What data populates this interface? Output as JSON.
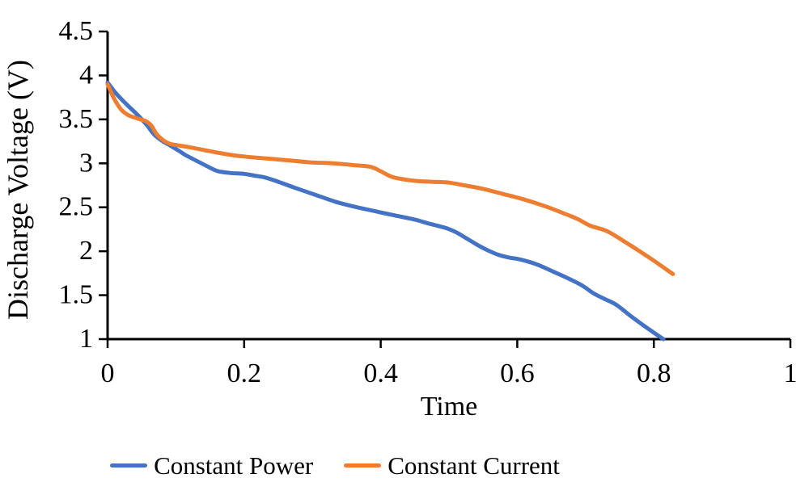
{
  "chart_data": {
    "type": "line",
    "title": "",
    "xlabel": "Time",
    "ylabel": "Discharge Voltage (V)",
    "xlim": [
      0,
      1
    ],
    "ylim": [
      1,
      4.5
    ],
    "grid": false,
    "legend_position": "bottom",
    "axis_color": "#000000",
    "text_color": "#000000",
    "x_ticks": {
      "values": [
        0,
        0.2,
        0.4,
        0.6,
        0.8,
        1
      ],
      "labels": [
        "0",
        "0.2",
        "0.4",
        "0.6",
        "0.8",
        "1"
      ]
    },
    "y_ticks": {
      "values": [
        1,
        1.5,
        2,
        2.5,
        3,
        3.5,
        4,
        4.5
      ],
      "labels": [
        "1",
        "1.5",
        "2",
        "2.5",
        "3",
        "3.5",
        "4",
        "4.5"
      ]
    },
    "series": [
      {
        "name": "Constant Power",
        "color": "#4472C4",
        "points": [
          [
            0.0,
            3.92
          ],
          [
            0.013,
            3.79
          ],
          [
            0.028,
            3.67
          ],
          [
            0.044,
            3.55
          ],
          [
            0.057,
            3.44
          ],
          [
            0.068,
            3.33
          ],
          [
            0.079,
            3.26
          ],
          [
            0.09,
            3.21
          ],
          [
            0.105,
            3.14
          ],
          [
            0.115,
            3.09
          ],
          [
            0.135,
            3.01
          ],
          [
            0.15,
            2.95
          ],
          [
            0.162,
            2.91
          ],
          [
            0.18,
            2.89
          ],
          [
            0.2,
            2.88
          ],
          [
            0.215,
            2.86
          ],
          [
            0.23,
            2.84
          ],
          [
            0.25,
            2.79
          ],
          [
            0.275,
            2.72
          ],
          [
            0.305,
            2.64
          ],
          [
            0.335,
            2.56
          ],
          [
            0.365,
            2.5
          ],
          [
            0.395,
            2.45
          ],
          [
            0.425,
            2.4
          ],
          [
            0.45,
            2.36
          ],
          [
            0.468,
            2.32
          ],
          [
            0.483,
            2.29
          ],
          [
            0.497,
            2.26
          ],
          [
            0.512,
            2.21
          ],
          [
            0.527,
            2.14
          ],
          [
            0.542,
            2.07
          ],
          [
            0.557,
            2.01
          ],
          [
            0.572,
            1.96
          ],
          [
            0.587,
            1.93
          ],
          [
            0.602,
            1.91
          ],
          [
            0.617,
            1.88
          ],
          [
            0.632,
            1.84
          ],
          [
            0.652,
            1.77
          ],
          [
            0.672,
            1.7
          ],
          [
            0.695,
            1.61
          ],
          [
            0.712,
            1.52
          ],
          [
            0.727,
            1.46
          ],
          [
            0.745,
            1.39
          ],
          [
            0.77,
            1.24
          ],
          [
            0.795,
            1.1
          ],
          [
            0.814,
            1.0
          ]
        ]
      },
      {
        "name": "Constant Current",
        "color": "#ED7D31",
        "points": [
          [
            0.0,
            3.9
          ],
          [
            0.01,
            3.73
          ],
          [
            0.02,
            3.61
          ],
          [
            0.03,
            3.55
          ],
          [
            0.04,
            3.52
          ],
          [
            0.048,
            3.5
          ],
          [
            0.056,
            3.48
          ],
          [
            0.064,
            3.43
          ],
          [
            0.072,
            3.33
          ],
          [
            0.082,
            3.26
          ],
          [
            0.092,
            3.22
          ],
          [
            0.107,
            3.2
          ],
          [
            0.122,
            3.18
          ],
          [
            0.142,
            3.15
          ],
          [
            0.162,
            3.12
          ],
          [
            0.186,
            3.09
          ],
          [
            0.21,
            3.07
          ],
          [
            0.24,
            3.05
          ],
          [
            0.27,
            3.03
          ],
          [
            0.3,
            3.01
          ],
          [
            0.33,
            3.0
          ],
          [
            0.36,
            2.98
          ],
          [
            0.385,
            2.96
          ],
          [
            0.4,
            2.91
          ],
          [
            0.415,
            2.85
          ],
          [
            0.432,
            2.82
          ],
          [
            0.452,
            2.8
          ],
          [
            0.475,
            2.79
          ],
          [
            0.5,
            2.78
          ],
          [
            0.522,
            2.75
          ],
          [
            0.55,
            2.71
          ],
          [
            0.58,
            2.65
          ],
          [
            0.605,
            2.6
          ],
          [
            0.63,
            2.54
          ],
          [
            0.652,
            2.48
          ],
          [
            0.675,
            2.41
          ],
          [
            0.69,
            2.36
          ],
          [
            0.707,
            2.29
          ],
          [
            0.731,
            2.23
          ],
          [
            0.755,
            2.12
          ],
          [
            0.793,
            1.93
          ],
          [
            0.828,
            1.74
          ]
        ]
      }
    ]
  }
}
